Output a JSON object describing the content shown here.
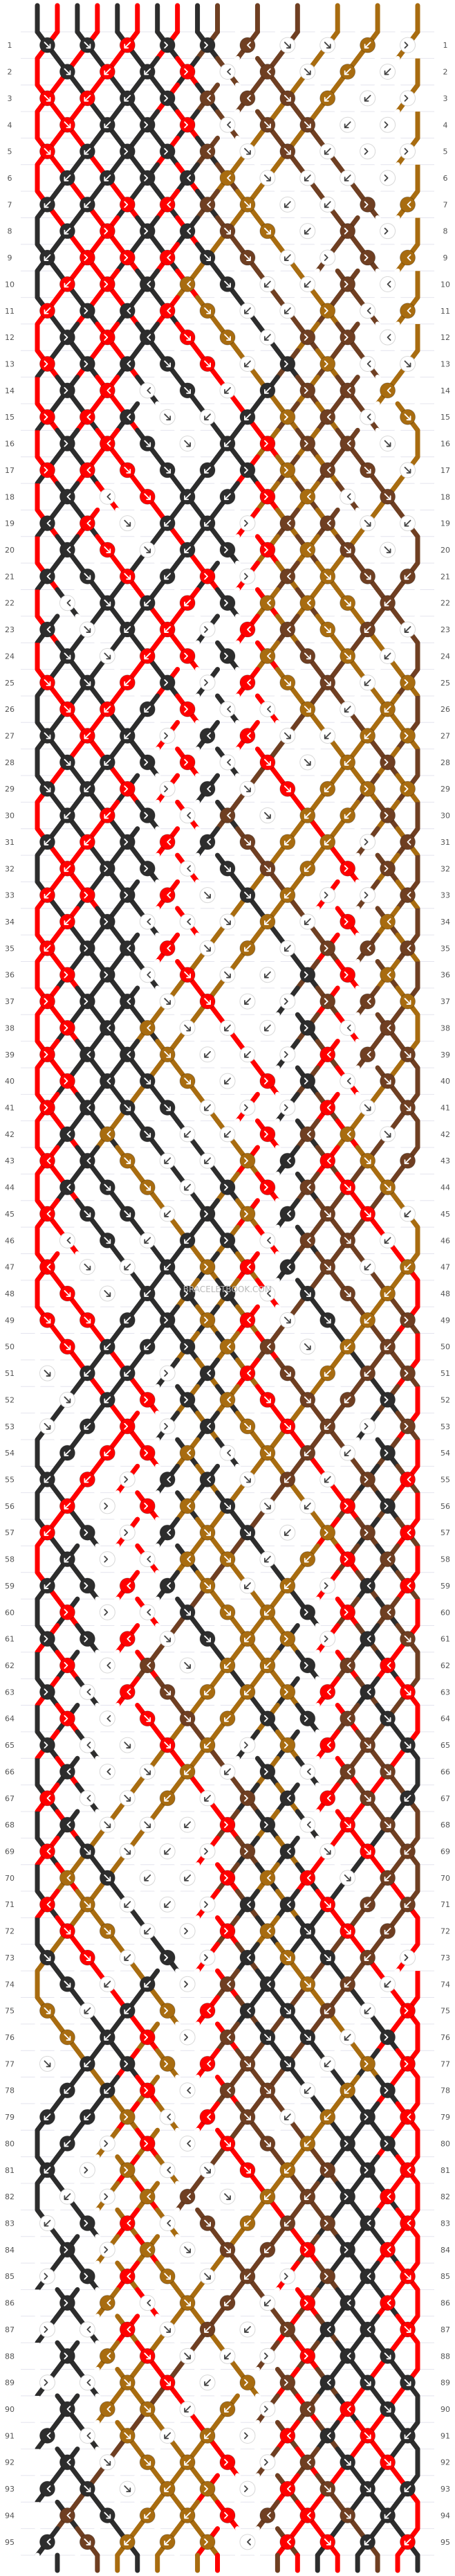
{
  "watermark": "BRACELETBOOK.COM",
  "pattern": {
    "strings": 20,
    "rows": 95,
    "palette": {
      "A": "#2d2d2d",
      "B": "#ff0000",
      "C": "#6f3f22",
      "D": "#a86c10",
      "E": "#ffffff"
    },
    "top_string_colors": [
      "A",
      "B",
      "A",
      "B",
      "A",
      "B",
      "A",
      "B",
      "A",
      "C",
      "E",
      "C",
      "E",
      "C",
      "E",
      "D",
      "E",
      "D",
      "E",
      "D"
    ],
    "row_labels": [
      "1",
      "2",
      "3",
      "4",
      "5",
      "6",
      "7",
      "8",
      "9",
      "10",
      "11",
      "12",
      "13",
      "14",
      "15",
      "16",
      "17",
      "18",
      "19",
      "20",
      "21",
      "22",
      "23",
      "24",
      "25",
      "26",
      "27",
      "28",
      "29",
      "30",
      "31",
      "32",
      "33",
      "34",
      "35",
      "36",
      "37",
      "38",
      "39",
      "40",
      "41",
      "42",
      "43",
      "44",
      "45",
      "46",
      "47",
      "48",
      "49",
      "50",
      "51",
      "52",
      "53",
      "54",
      "55",
      "56",
      "57",
      "58",
      "59",
      "60",
      "61",
      "62",
      "63",
      "64",
      "65",
      "66",
      "67",
      "68",
      "69",
      "70",
      "71",
      "72",
      "73",
      "74",
      "75",
      "76",
      "77",
      "78",
      "79",
      "80",
      "81",
      "82",
      "83",
      "84",
      "85",
      "86",
      "87",
      "88",
      "89",
      "90",
      "91",
      "92",
      "93",
      "94",
      "95"
    ]
  }
}
